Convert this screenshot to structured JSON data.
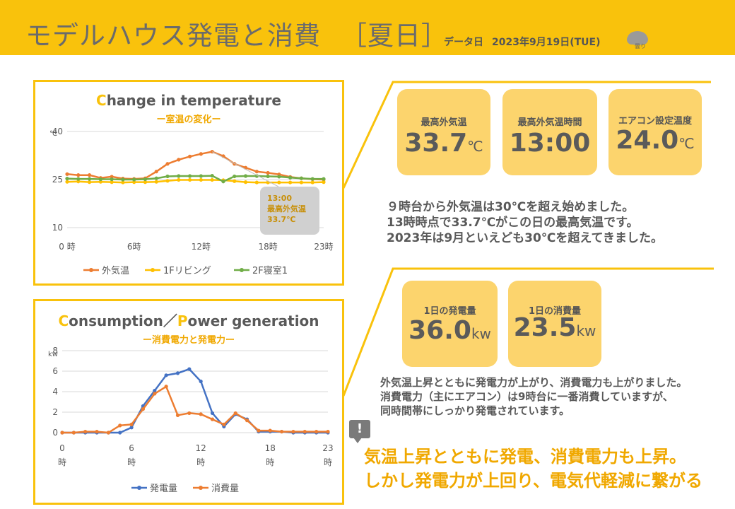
{
  "header": {
    "title": "モデルハウス発電と消費",
    "title_bracket": "［夏日］",
    "date_label": "データ日",
    "date_value": "2023年9月19日(TUE)",
    "weather_label": "曇り",
    "weather_icon": "cloud-icon"
  },
  "colors": {
    "accent": "#f9c20c",
    "card": "#fcd46d",
    "orange": "#ed7d31",
    "yellow": "#ffc000",
    "green": "#70ad47",
    "blue": "#4472c4"
  },
  "temp_chart": {
    "title_first": "C",
    "title_rest": "hange in temperature",
    "subtitle": "ー室温の変化ー",
    "unit": "℃",
    "y_ticks": [
      "40",
      "25",
      "10"
    ],
    "x_ticks": [
      "0 時",
      "6時",
      "12時",
      "18時",
      "23時"
    ],
    "callout": {
      "line1": "13:00",
      "line2": "最高外気温",
      "line3": "33.7℃"
    }
  },
  "power_chart": {
    "title_first1": "C",
    "title_rest1": "onsumption／",
    "title_first2": "P",
    "title_rest2": "ower generation",
    "subtitle": "ー消費電力と発電力ー",
    "unit": "kw",
    "y_ticks": [
      "8",
      "6",
      "4",
      "2",
      "0"
    ],
    "x_ticks": [
      "0",
      "6",
      "12",
      "18",
      "23"
    ],
    "x_tick_suffix": "時"
  },
  "cards": {
    "max_temp": {
      "label": "最高外気温",
      "value": "33.7",
      "unit": "℃"
    },
    "max_time": {
      "label": "最高外気温時間",
      "value": "13:00"
    },
    "ac_temp": {
      "label": "エアコン設定温度",
      "value": "24.0",
      "unit": "℃"
    },
    "gen": {
      "label": "1日の発電量",
      "value": "36.0",
      "unit": "kw"
    },
    "cons": {
      "label": "1日の消費量",
      "value": "23.5",
      "unit": "kw"
    }
  },
  "desc1": [
    "９時台から外気温は30℃を超え始めました。",
    "13時時点で33.7℃がこの日の最高気温です。",
    "2023年は9月といえども30℃を超えてきました。"
  ],
  "desc2": [
    "外気温上昇とともに発電力が上がり、消費電力も上がりました。",
    "消費電力（主にエアコン）は9時台に一番消費していますが、",
    "同時間帯にしっかり発電されています。"
  ],
  "alert_symbol": "!",
  "conclusion": [
    "気温上昇とともに発電、消費電力も上昇。",
    "しかし発電力が上回り、電気代軽減に繋がる"
  ],
  "chart_data": [
    {
      "type": "line",
      "title": "Change in temperature",
      "subtitle": "ー室温の変化ー",
      "xlabel": "",
      "ylabel": "℃",
      "ylim": [
        10,
        40
      ],
      "x": [
        0,
        1,
        2,
        3,
        4,
        5,
        6,
        7,
        8,
        9,
        10,
        11,
        12,
        13,
        14,
        15,
        16,
        17,
        18,
        19,
        20,
        21,
        22,
        23
      ],
      "series": [
        {
          "name": "外気温",
          "color": "#ed7d31",
          "values": [
            26.7,
            26.4,
            26.4,
            25.5,
            25.9,
            25.3,
            25.2,
            25.4,
            27.5,
            29.9,
            31.2,
            32.2,
            33.0,
            33.7,
            32.3,
            29.9,
            28.7,
            27.5,
            27.1,
            26.6,
            25.8,
            25.4,
            25.1,
            25.0
          ]
        },
        {
          "name": "1Fリビング",
          "color": "#ffc000",
          "values": [
            24.3,
            24.4,
            24.2,
            24.3,
            24.2,
            24.1,
            24.2,
            24.2,
            24.3,
            24.6,
            24.9,
            24.9,
            24.9,
            24.9,
            24.8,
            24.5,
            24.2,
            24.1,
            24.1,
            24.1,
            24.1,
            24.1,
            24.1,
            24.2
          ]
        },
        {
          "name": "2F寝室1",
          "color": "#70ad47",
          "values": [
            25.3,
            25.2,
            25.2,
            25.1,
            25.1,
            25.0,
            25.0,
            25.1,
            25.4,
            26.0,
            26.1,
            26.1,
            26.1,
            26.2,
            24.4,
            26.0,
            26.1,
            26.1,
            26.0,
            25.9,
            25.6,
            25.4,
            25.2,
            25.2
          ]
        }
      ],
      "legend": "bottom"
    },
    {
      "type": "line",
      "title": "Consumption／Power generation",
      "subtitle": "ー消費電力と発電力ー",
      "xlabel": "時",
      "ylabel": "kw",
      "ylim": [
        0,
        8
      ],
      "x": [
        0,
        1,
        2,
        3,
        4,
        5,
        6,
        7,
        8,
        9,
        10,
        11,
        12,
        13,
        14,
        15,
        16,
        17,
        18,
        19,
        20,
        21,
        22,
        23
      ],
      "series": [
        {
          "name": "発電量",
          "color": "#4472c4",
          "values": [
            0,
            0,
            0,
            0,
            0,
            0,
            0.5,
            2.6,
            4.1,
            5.6,
            5.8,
            6.2,
            5.0,
            1.9,
            0.6,
            1.8,
            1.3,
            0.1,
            0.1,
            0.1,
            0,
            0,
            0,
            0
          ]
        },
        {
          "name": "消費量",
          "color": "#ed7d31",
          "values": [
            0.0,
            0.0,
            0.1,
            0.1,
            0.0,
            0.7,
            0.8,
            2.3,
            3.8,
            4.5,
            1.7,
            1.9,
            1.8,
            1.3,
            0.8,
            1.9,
            1.2,
            0.2,
            0.2,
            0.1,
            0.1,
            0.1,
            0.1,
            0.1
          ]
        }
      ],
      "legend": "bottom"
    }
  ]
}
